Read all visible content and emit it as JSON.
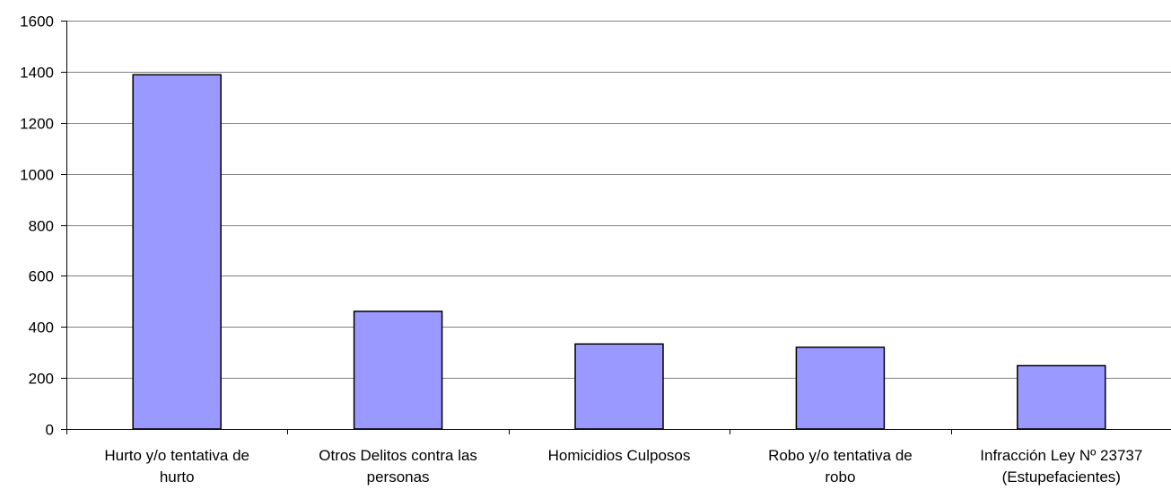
{
  "chart_data": {
    "type": "bar",
    "title": "",
    "xlabel": "",
    "ylabel": "",
    "categories": [
      [
        "Hurto y/o tentativa de",
        "hurto"
      ],
      [
        "Otros Delitos contra las",
        "personas"
      ],
      [
        "Homicidios Culposos"
      ],
      [
        "Robo y/o tentativa de",
        "robo"
      ],
      [
        "Infracción Ley Nº 23737",
        "(Estupefacientes)"
      ]
    ],
    "values": [
      1388,
      461,
      333,
      320,
      248
    ],
    "ylim": [
      0,
      1600
    ],
    "yticks": [
      "0",
      "200",
      "400",
      "600",
      "800",
      "1000",
      "1200",
      "1400",
      "1600"
    ],
    "grid": true,
    "legend": "none",
    "bar_color": "#9999ff",
    "bar_stroke": "#000000",
    "grid_color": "#808080"
  }
}
